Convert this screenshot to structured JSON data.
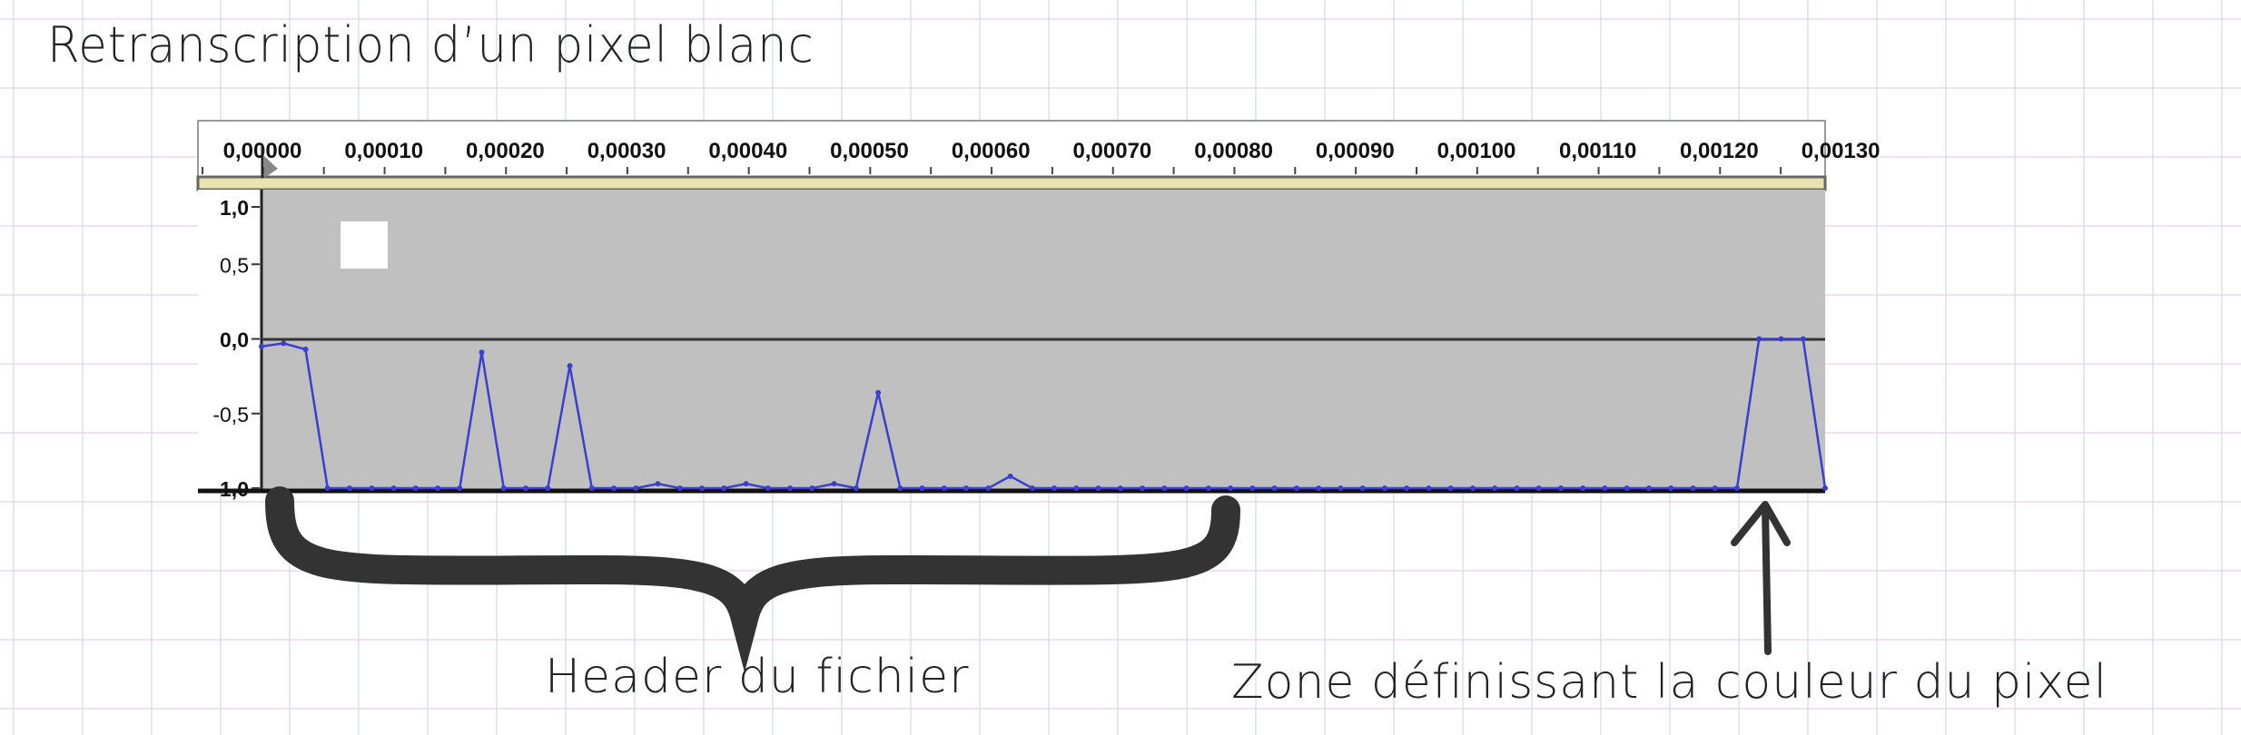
{
  "title": "Retranscription d’un pixel blanc",
  "annotations": {
    "header_label": "Header du fichier",
    "color_zone_label": "Zone définissant la couleur du pixel"
  },
  "colors": {
    "waveform": "#3a3fd0",
    "track_background": "#c0c0c0",
    "ruler_background": "#ffffff",
    "ruler_divider": "#e8e4b0",
    "white_pixel": "#ffffff",
    "brace_color": "#333333"
  },
  "chart_data": {
    "type": "line",
    "title": "",
    "xlabel": "",
    "ylabel": "",
    "xlim": [
      0,
      0.00129
    ],
    "ylim": [
      -1.0,
      1.0
    ],
    "x_ticks": [
      "0,00000",
      "0,00010",
      "0,00020",
      "0,00030",
      "0,00040",
      "0,00050",
      "0,00060",
      "0,00070",
      "0,00080",
      "0,00090",
      "0,00100",
      "0,00110",
      "0,00120",
      "0,00130"
    ],
    "y_ticks": [
      "1,0",
      "0,5",
      "0,0",
      "-0,5",
      "-1,0"
    ],
    "y_tick_values": [
      1.0,
      0.5,
      0.0,
      -0.5,
      -1.0
    ],
    "series": [
      {
        "sample_interval": 2.27e-05,
        "values": [
          -0.05,
          -0.03,
          -0.07,
          -1.0,
          -1.0,
          -1.0,
          -1.0,
          -1.0,
          -1.0,
          -1.0,
          -0.09,
          -1.0,
          -1.0,
          -1.0,
          -0.18,
          -1.0,
          -1.0,
          -1.0,
          -0.97,
          -1.0,
          -1.0,
          -1.0,
          -0.97,
          -1.0,
          -1.0,
          -1.0,
          -0.97,
          -1.0,
          -0.36,
          -1.0,
          -1.0,
          -1.0,
          -1.0,
          -1.0,
          -0.92,
          -1.0,
          -1.0,
          -1.0,
          -1.0,
          -1.0,
          -1.0,
          -1.0,
          -1.0,
          -1.0,
          -1.0,
          -1.0,
          -1.0,
          -1.0,
          -1.0,
          -1.0,
          -1.0,
          -1.0,
          -1.0,
          -1.0,
          -1.0,
          -1.0,
          -1.0,
          -1.0,
          -1.0,
          -1.0,
          -1.0,
          -1.0,
          -1.0,
          -1.0,
          -1.0,
          -1.0,
          -1.0,
          -1.0,
          0.0,
          0.0,
          0.0,
          -1.0
        ]
      }
    ],
    "grid": false,
    "legend": "none"
  }
}
